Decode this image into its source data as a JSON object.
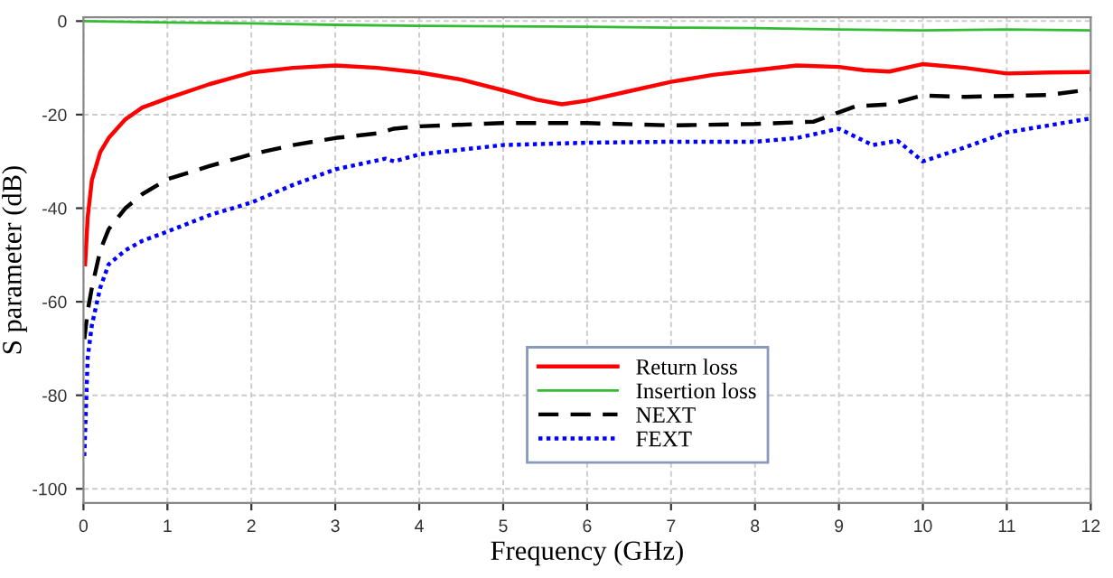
{
  "chart_data": {
    "type": "line",
    "xlabel": "Frequency (GHz)",
    "ylabel": "S parameter (dB)",
    "xlim": [
      0,
      12
    ],
    "ylim": [
      -103,
      0.8
    ],
    "xticks": [
      0,
      1,
      2,
      3,
      4,
      5,
      6,
      7,
      8,
      9,
      10,
      11,
      12
    ],
    "yticks": [
      0,
      -20,
      -40,
      -60,
      -80,
      -100
    ],
    "grid": true,
    "legend": "bottom",
    "marker": "none",
    "series": [
      {
        "name": "Return loss",
        "color": "#ff0000",
        "line_style": "solid",
        "x": [
          0.02,
          0.05,
          0.1,
          0.2,
          0.3,
          0.5,
          0.7,
          1,
          1.5,
          2,
          2.5,
          3,
          3.5,
          4,
          4.5,
          5,
          5.4,
          5.7,
          6,
          6.5,
          7,
          7.5,
          8,
          8.5,
          9,
          9.3,
          9.6,
          10,
          10.5,
          11,
          11.5,
          12
        ],
        "values": [
          -52,
          -42,
          -34,
          -28,
          -25,
          -21,
          -18.5,
          -16.5,
          -13.5,
          -11,
          -10,
          -9.5,
          -10,
          -11,
          -12.5,
          -14.8,
          -16.8,
          -17.8,
          -17,
          -15,
          -13,
          -11.5,
          -10.5,
          -9.5,
          -9.8,
          -10.5,
          -10.8,
          -9.2,
          -10,
          -11.2,
          -11,
          -10.9
        ]
      },
      {
        "name": "Insertion loss",
        "color": "#33bb33",
        "line_style": "solid",
        "x": [
          0,
          1,
          2,
          3,
          4,
          5,
          6,
          7,
          8,
          9,
          10,
          11,
          12
        ],
        "values": [
          0,
          -0.3,
          -0.5,
          -0.8,
          -1,
          -1.1,
          -1.2,
          -1.4,
          -1.5,
          -1.8,
          -2,
          -1.8,
          -2
        ]
      },
      {
        "name": "NEXT",
        "color": "#000000",
        "line_style": "dashed",
        "x": [
          0.01,
          0.05,
          0.1,
          0.2,
          0.3,
          0.5,
          0.7,
          1,
          1.5,
          2,
          2.5,
          3,
          3.5,
          3.7,
          4,
          5,
          6,
          7,
          8,
          8.7,
          9,
          9.2,
          9.6,
          10,
          10.5,
          11,
          11.5,
          12
        ],
        "values": [
          -68,
          -62,
          -57,
          -49,
          -44.5,
          -40,
          -37,
          -33.8,
          -31,
          -28.5,
          -26.5,
          -25,
          -24,
          -23,
          -22.5,
          -21.8,
          -21.8,
          -22.3,
          -22,
          -21.5,
          -19.5,
          -18.2,
          -17.8,
          -15.9,
          -16.2,
          -16,
          -15.8,
          -14.6
        ]
      },
      {
        "name": "FEXT",
        "color": "#0000ff",
        "line_style": "dotted",
        "x": [
          0.01,
          0.05,
          0.1,
          0.2,
          0.3,
          0.5,
          0.7,
          1,
          1.5,
          2,
          2.5,
          3,
          3.6,
          3.7,
          4,
          5,
          6,
          7,
          8,
          8.5,
          9,
          9.4,
          9.7,
          10,
          10.5,
          11,
          11.5,
          12
        ],
        "values": [
          -93,
          -72,
          -65,
          -57,
          -52,
          -49,
          -47,
          -45,
          -41.5,
          -38.8,
          -35,
          -31.7,
          -29.4,
          -30,
          -28.5,
          -26.5,
          -26,
          -25.8,
          -25.8,
          -25,
          -23,
          -26.5,
          -25.6,
          -30,
          -27,
          -23.8,
          -22.3,
          -20.8
        ]
      }
    ]
  }
}
